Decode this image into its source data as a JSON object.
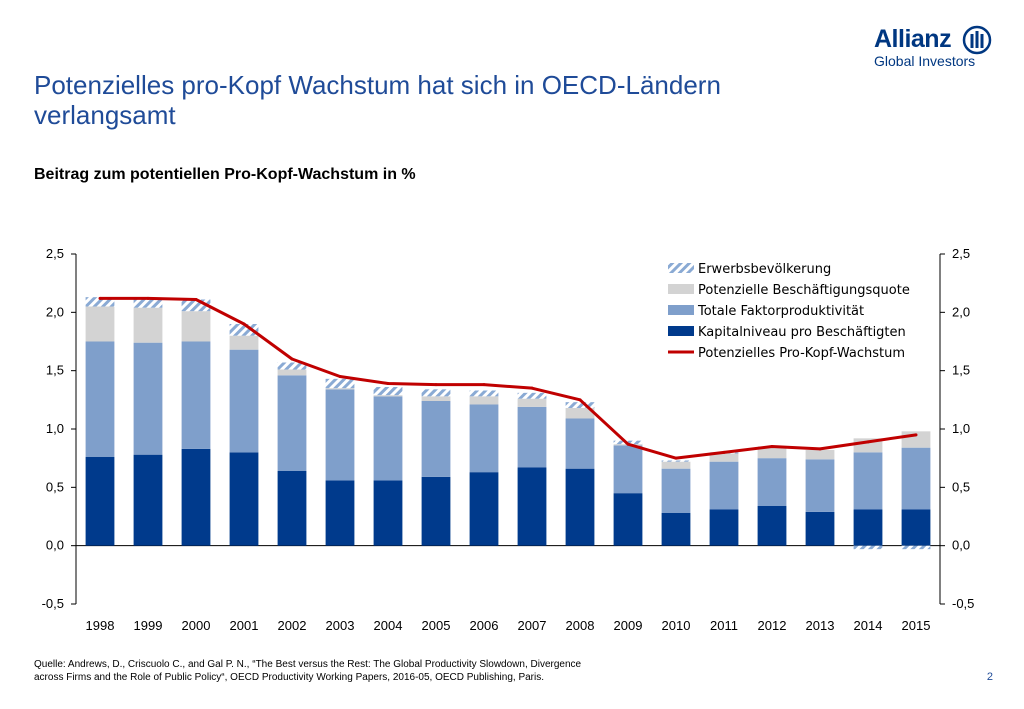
{
  "header": {
    "title_line1": "Potenzielles pro-Kopf Wachstum hat sich in OECD-Ländern",
    "title_line2": "verlangsamt",
    "subtitle": "Beitrag zum potentiellen Pro-Kopf-Wachstum in %"
  },
  "logo": {
    "wordmark": "Allianz",
    "subline": "Global Investors",
    "icon": "allianz-eagle-icon",
    "color": "#003781"
  },
  "footer": {
    "source_line1": "Quelle: Andrews, D., Criscuolo C., and Gal P. N., “The Best versus the Rest: The Global Productivity Slowdown, Divergence",
    "source_line2": "across Firms and the Role of Public Policy“, OECD Productivity Working Papers, 2016-05, OECD Publishing, Paris.",
    "page_number": "2"
  },
  "chart_data": {
    "type": "bar",
    "stacked": true,
    "categories": [
      "1998",
      "1999",
      "2000",
      "2001",
      "2002",
      "2003",
      "2004",
      "2005",
      "2006",
      "2007",
      "2008",
      "2009",
      "2010",
      "2011",
      "2012",
      "2013",
      "2014",
      "2015"
    ],
    "ylim": [
      -0.5,
      2.5
    ],
    "yticks": [
      "-0,5",
      "0,0",
      "0,5",
      "1,0",
      "1,5",
      "2,0",
      "2,5"
    ],
    "ytick_values": [
      -0.5,
      0.0,
      0.5,
      1.0,
      1.5,
      2.0,
      2.5
    ],
    "secondary_axis": true,
    "grid": false,
    "legend_position": "top-right",
    "series": [
      {
        "name": "Kapitalniveau pro Beschäftigten",
        "kind": "bar",
        "color": "#003a8c",
        "values": [
          0.76,
          0.78,
          0.83,
          0.8,
          0.64,
          0.56,
          0.56,
          0.59,
          0.63,
          0.67,
          0.66,
          0.45,
          0.28,
          0.31,
          0.34,
          0.29,
          0.31,
          0.31
        ]
      },
      {
        "name": "Totale Faktorproduktivität",
        "kind": "bar",
        "color": "#7f9fcb",
        "values": [
          0.99,
          0.96,
          0.92,
          0.88,
          0.82,
          0.78,
          0.72,
          0.65,
          0.58,
          0.52,
          0.43,
          0.41,
          0.38,
          0.41,
          0.41,
          0.45,
          0.49,
          0.53
        ]
      },
      {
        "name": "Potenzielle Beschäftigungsquote",
        "kind": "bar",
        "color": "#d3d3d3",
        "values": [
          0.3,
          0.3,
          0.26,
          0.12,
          0.05,
          0.01,
          0.01,
          0.04,
          0.07,
          0.07,
          0.09,
          0.01,
          0.06,
          0.07,
          0.09,
          0.08,
          0.12,
          0.14
        ]
      },
      {
        "name": "Erwerbsbevölkerung",
        "kind": "bar",
        "color": "#8aaad4",
        "pattern": "hatched",
        "values": [
          0.08,
          0.07,
          0.1,
          0.1,
          0.06,
          0.08,
          0.07,
          0.06,
          0.05,
          0.05,
          0.05,
          0.03,
          0.01,
          0.01,
          0.01,
          0.0,
          -0.03,
          -0.03
        ]
      },
      {
        "name": "Potenzielles Pro-Kopf-Wachstum",
        "kind": "line",
        "color": "#c00000",
        "values": [
          2.12,
          2.12,
          2.11,
          1.9,
          1.6,
          1.45,
          1.39,
          1.38,
          1.38,
          1.35,
          1.25,
          0.87,
          0.75,
          0.8,
          0.85,
          0.83,
          0.89,
          0.95
        ]
      }
    ],
    "legend_order": [
      "Erwerbsbevölkerung",
      "Potenzielle Beschäftigungsquote",
      "Totale Faktorproduktivität",
      "Kapitalniveau pro Beschäftigten",
      "Potenzielles Pro-Kopf-Wachstum"
    ]
  }
}
